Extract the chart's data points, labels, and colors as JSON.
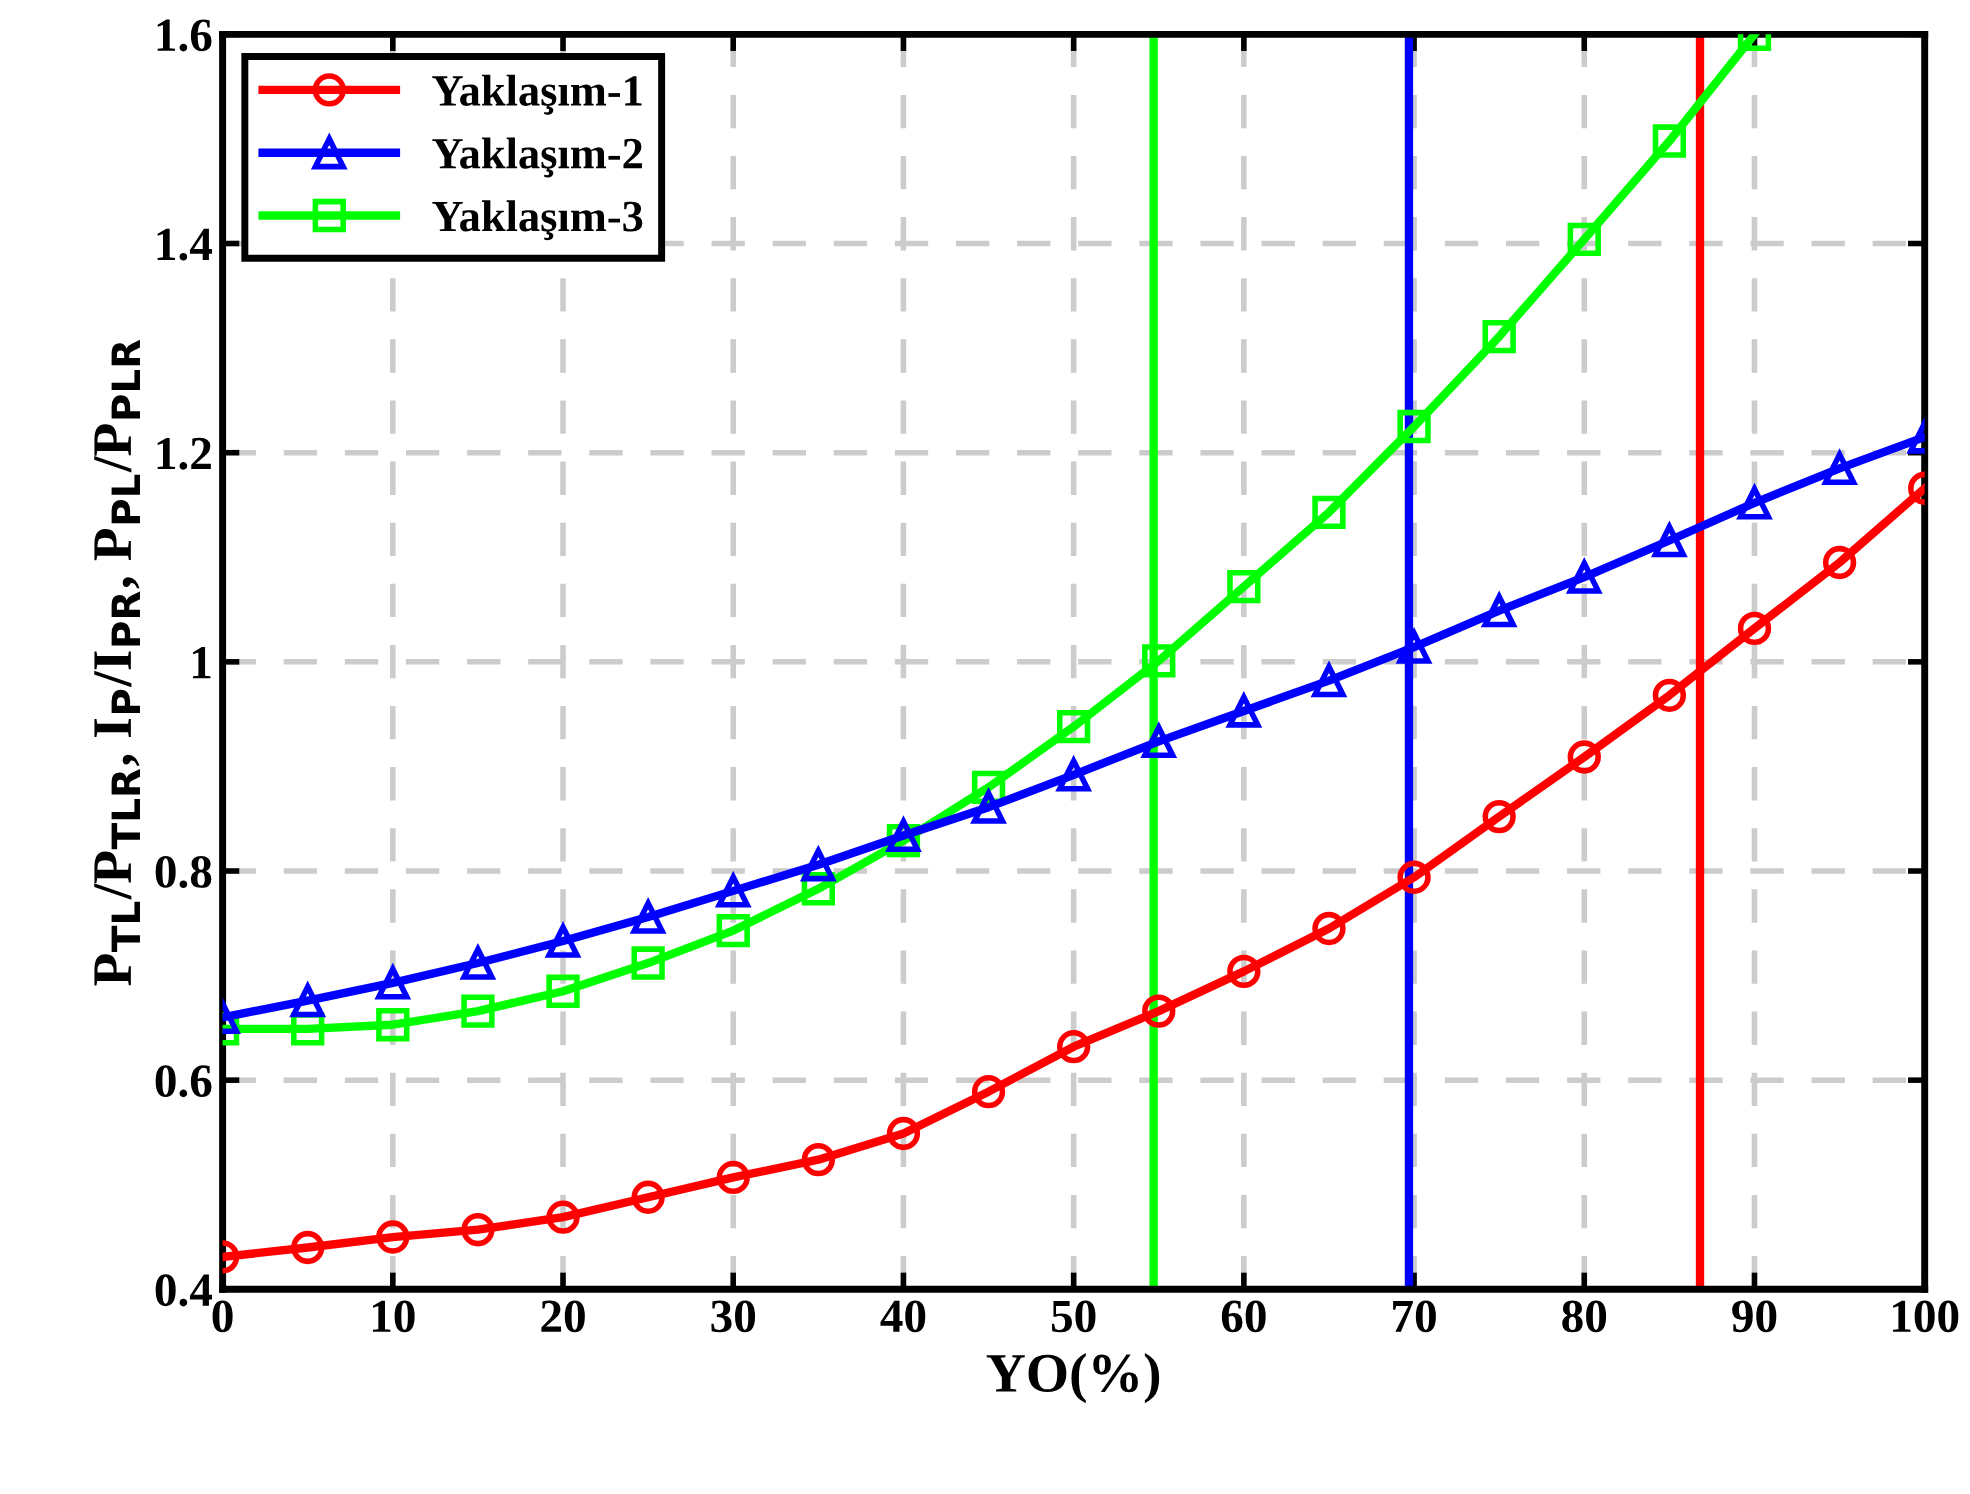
{
  "chart_data": {
    "type": "line",
    "xlabel": "YO(%)",
    "ylabel": "P$_{TL}$/P$_{TLR}$, I$_{P}$/I$_{PR}$, P$_{PL}$/P$_{PLR}$",
    "x": [
      0,
      5,
      10,
      15,
      20,
      25,
      30,
      35,
      40,
      45,
      50,
      55,
      60,
      65,
      70,
      75,
      80,
      85,
      90,
      95,
      100
    ],
    "series": [
      {
        "name": "Yaklaşım-1",
        "color": "#ff0000",
        "marker": "circle",
        "values": [
          0.431,
          0.44,
          0.45,
          0.457,
          0.469,
          0.488,
          0.507,
          0.524,
          0.549,
          0.589,
          0.632,
          0.666,
          0.704,
          0.745,
          0.794,
          0.852,
          0.909,
          0.968,
          1.032,
          1.095,
          1.166
        ]
      },
      {
        "name": "Yaklaşım-2",
        "color": "#0000ff",
        "marker": "triangle",
        "values": [
          0.66,
          0.676,
          0.693,
          0.712,
          0.733,
          0.756,
          0.781,
          0.806,
          0.834,
          0.861,
          0.892,
          0.924,
          0.953,
          0.982,
          1.014,
          1.049,
          1.081,
          1.116,
          1.152,
          1.185,
          1.215
        ]
      },
      {
        "name": "Yaklaşım-3",
        "color": "#00ff00",
        "marker": "square",
        "values": [
          0.649,
          0.649,
          0.653,
          0.666,
          0.685,
          0.712,
          0.743,
          0.783,
          0.829,
          0.88,
          0.938,
          1.001,
          1.072,
          1.143,
          1.225,
          1.311,
          1.404,
          1.498,
          1.6,
          null,
          null
        ]
      }
    ],
    "ref_lines": [
      {
        "axis": "x",
        "value": 54.7,
        "color": "#00ff00"
      },
      {
        "axis": "x",
        "value": 69.7,
        "color": "#0000ff"
      },
      {
        "axis": "x",
        "value": 86.8,
        "color": "#ff0000"
      }
    ],
    "xlim": [
      0,
      100
    ],
    "xticks": [
      0,
      10,
      20,
      30,
      40,
      50,
      60,
      70,
      80,
      90,
      100
    ],
    "ylim": [
      0.4,
      1.6
    ],
    "yticks": [
      0.4,
      0.6,
      0.8,
      1,
      1.2,
      1.4,
      1.6
    ],
    "grid": true,
    "legend": "top left",
    "line_style": "solid"
  }
}
